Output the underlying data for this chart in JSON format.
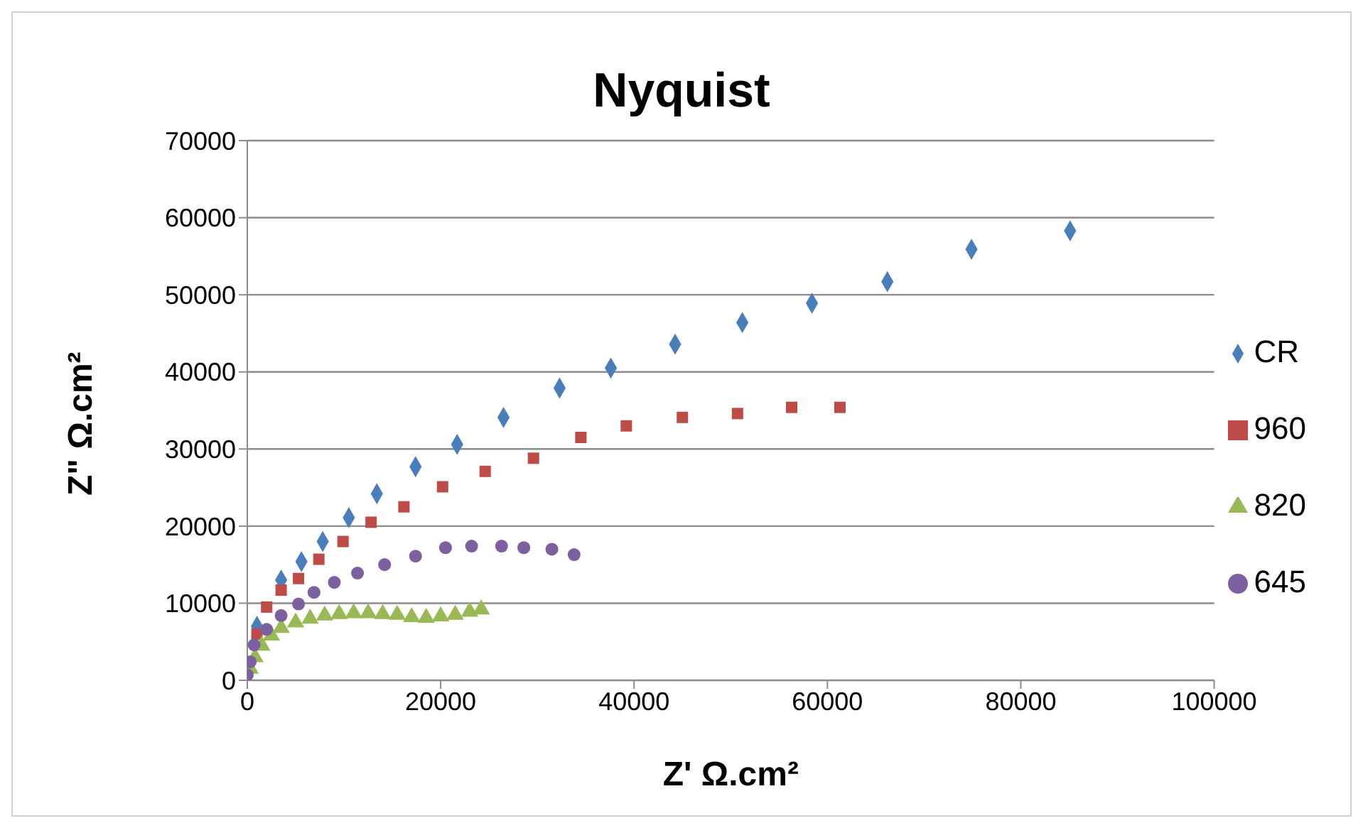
{
  "chart_data": {
    "type": "scatter",
    "title": "Nyquist",
    "xlabel": "Z' Ω.cm²",
    "ylabel": "Z\" Ω.cm²",
    "xlim": [
      0,
      100000
    ],
    "xticks": [
      0,
      20000,
      40000,
      60000,
      80000,
      100000
    ],
    "ylim": [
      0,
      70000
    ],
    "yticks": [
      0,
      10000,
      20000,
      30000,
      40000,
      50000,
      60000,
      70000
    ],
    "grid": "y",
    "legend": "right",
    "series": [
      {
        "name": "CR",
        "color": "#4a7ebb",
        "marker": "diamond",
        "x": [
          1000,
          3500,
          5600,
          7800,
          10500,
          13400,
          17400,
          21700,
          26500,
          32300,
          37600,
          44250,
          51200,
          58400,
          66200,
          74900,
          85100
        ],
        "values": [
          7000,
          13000,
          15400,
          18000,
          21100,
          24200,
          27700,
          30600,
          34100,
          37900,
          40500,
          43600,
          46400,
          48900,
          51700,
          55900,
          58300
        ]
      },
      {
        "name": "960",
        "color": "#be4b48",
        "marker": "square",
        "x": [
          1000,
          2000,
          3500,
          5300,
          7400,
          9900,
          12800,
          16200,
          20200,
          24600,
          29600,
          34500,
          39200,
          45000,
          50700,
          56300,
          61300
        ],
        "values": [
          6000,
          9500,
          11700,
          13200,
          15700,
          18000,
          20500,
          22500,
          25100,
          27100,
          28800,
          31500,
          33000,
          34100,
          34600,
          35400,
          35400
        ]
      },
      {
        "name": "820",
        "color": "#98b954",
        "marker": "triangle",
        "x": [
          300,
          800,
          1500,
          2500,
          3500,
          5000,
          6500,
          8000,
          9500,
          11000,
          12500,
          14000,
          15500,
          17000,
          18500,
          20000,
          21500,
          23000,
          24200
        ],
        "values": [
          1500,
          3000,
          4500,
          5800,
          6800,
          7500,
          8000,
          8400,
          8600,
          8700,
          8700,
          8600,
          8500,
          8200,
          8100,
          8300,
          8500,
          8900,
          9200
        ]
      },
      {
        "name": "645",
        "color": "#7d60a0",
        "marker": "circle",
        "x": [
          0,
          300,
          700,
          2000,
          3500,
          5300,
          6900,
          9000,
          11400,
          14200,
          17400,
          20500,
          23200,
          26300,
          28600,
          31500,
          33800
        ],
        "values": [
          700,
          2400,
          4600,
          6600,
          8400,
          9900,
          11400,
          12700,
          13900,
          15000,
          16100,
          17200,
          17400,
          17400,
          17200,
          17000,
          16300
        ]
      }
    ]
  }
}
